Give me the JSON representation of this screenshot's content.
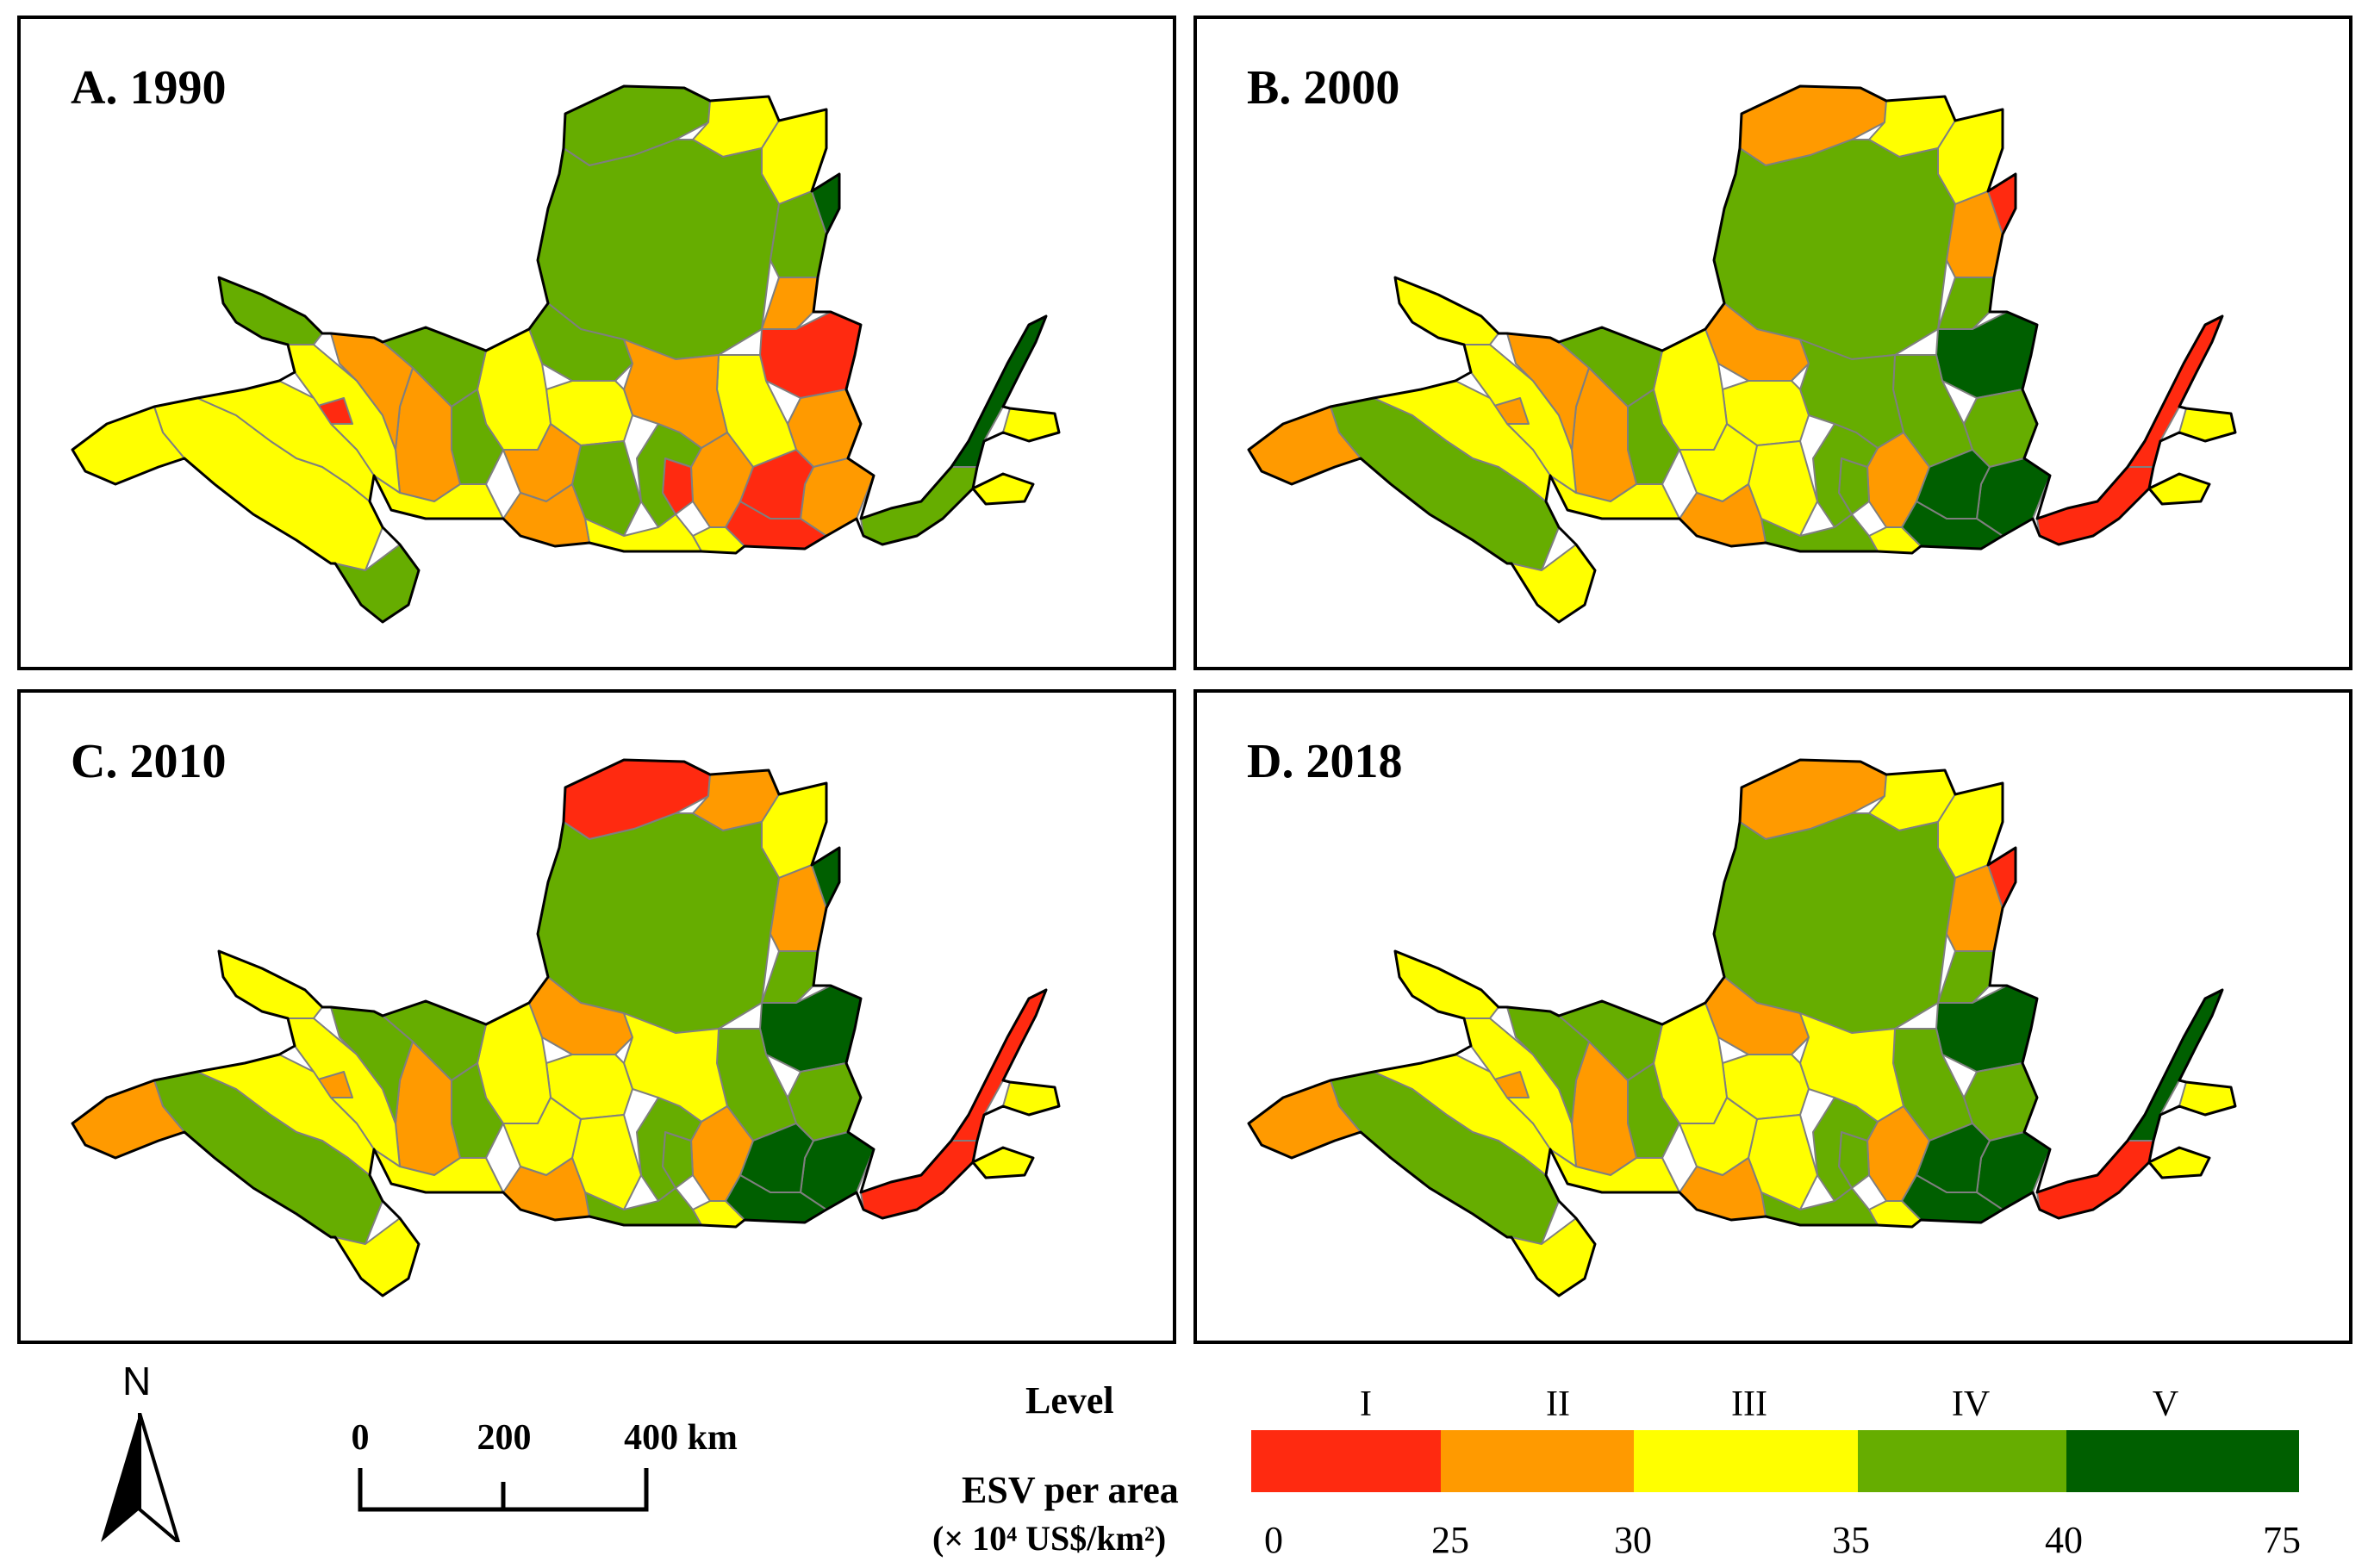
{
  "colors": {
    "I": "#ff2a10",
    "II": "#ff9a00",
    "III": "#ffff00",
    "IV": "#66ad00",
    "V": "#005f00"
  },
  "panels": [
    {
      "id": "A",
      "title": "A. 1990",
      "levels": [
        "IV",
        "III",
        "III",
        "IV",
        "V",
        "IV",
        "IV",
        "II",
        "I",
        "II",
        "III",
        "II",
        "I",
        "I",
        "IV",
        "V",
        "III",
        "III",
        "II",
        "II",
        "I",
        "IV",
        "III",
        "III",
        "IV",
        "III",
        "III",
        "II",
        "II",
        "IV",
        "IV",
        "II",
        "III",
        "III",
        "IV",
        "II",
        "I",
        "III",
        "III",
        "IV",
        "III"
      ]
    },
    {
      "id": "B",
      "title": "B. 2000",
      "levels": [
        "II",
        "III",
        "III",
        "IV",
        "I",
        "II",
        "II",
        "IV",
        "V",
        "IV",
        "IV",
        "V",
        "V",
        "V",
        "I",
        "I",
        "III",
        "III",
        "IV",
        "II",
        "IV",
        "IV",
        "III",
        "III",
        "III",
        "IV",
        "III",
        "III",
        "II",
        "IV",
        "IV",
        "II",
        "III",
        "III",
        "III",
        "II",
        "II",
        "IV",
        "III",
        "III",
        "II"
      ]
    },
    {
      "id": "C",
      "title": "C. 2010",
      "levels": [
        "I",
        "II",
        "III",
        "IV",
        "V",
        "II",
        "II",
        "IV",
        "V",
        "IV",
        "IV",
        "V",
        "V",
        "V",
        "I",
        "I",
        "III",
        "III",
        "III",
        "II",
        "IV",
        "IV",
        "III",
        "III",
        "III",
        "IV",
        "III",
        "III",
        "II",
        "IV",
        "IV",
        "II",
        "III",
        "III",
        "III",
        "IV",
        "II",
        "IV",
        "III",
        "III",
        "II"
      ]
    },
    {
      "id": "D",
      "title": "D. 2018",
      "levels": [
        "II",
        "III",
        "III",
        "IV",
        "I",
        "II",
        "II",
        "IV",
        "V",
        "IV",
        "IV",
        "V",
        "V",
        "V",
        "I",
        "V",
        "III",
        "III",
        "III",
        "II",
        "IV",
        "IV",
        "III",
        "III",
        "III",
        "IV",
        "III",
        "III",
        "II",
        "IV",
        "IV",
        "II",
        "III",
        "III",
        "III",
        "IV",
        "II",
        "IV",
        "III",
        "III",
        "II"
      ]
    }
  ],
  "legend": {
    "level_title": "Level",
    "value_title": "ESV per area",
    "unit": "(× 10⁴ US$/km²)",
    "classes": [
      {
        "label": "I",
        "key": "I",
        "min": 0,
        "max": 25
      },
      {
        "label": "II",
        "key": "II",
        "min": 25,
        "max": 30
      },
      {
        "label": "III",
        "key": "III",
        "min": 30,
        "max": 35
      },
      {
        "label": "IV",
        "key": "IV",
        "min": 35,
        "max": 40
      },
      {
        "label": "V",
        "key": "V",
        "min": 40,
        "max": 75
      }
    ],
    "ticks": [
      "0",
      "25",
      "30",
      "35",
      "40",
      "75"
    ]
  },
  "north_arrow": {
    "label": "N"
  },
  "scale_bar": {
    "labels": [
      "0",
      "200",
      "400 km"
    ]
  }
}
